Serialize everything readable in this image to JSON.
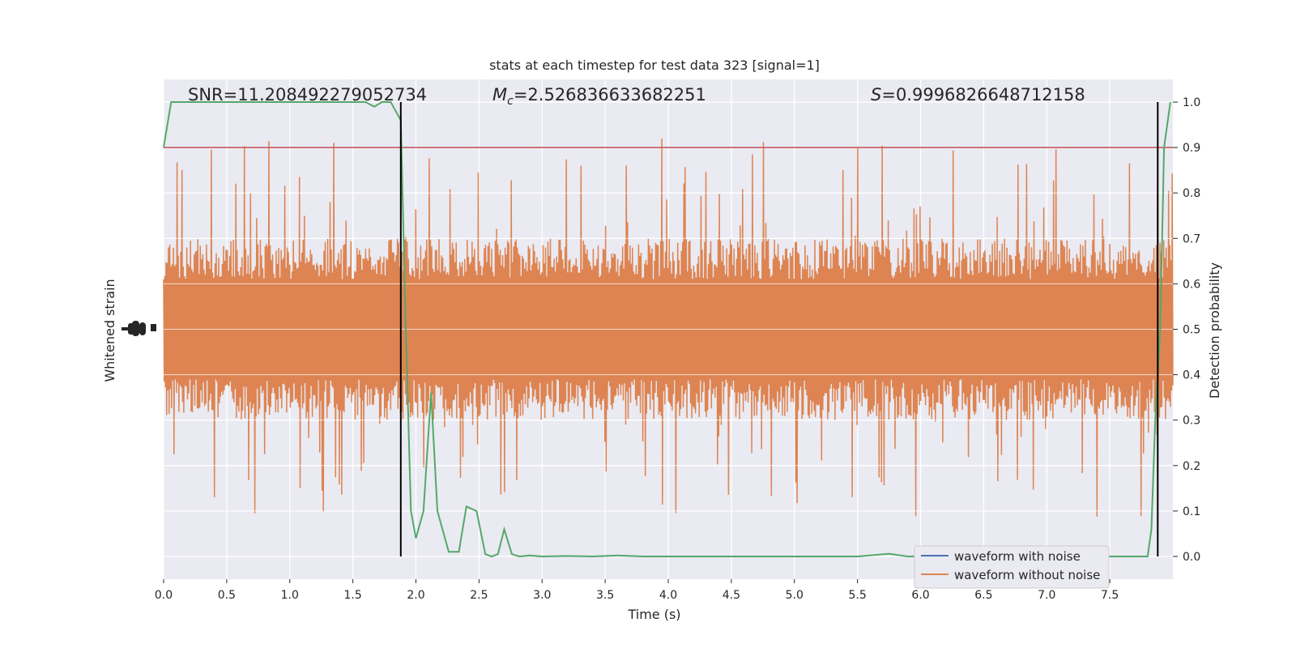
{
  "chart_data": {
    "type": "line",
    "title": "stats at each timestep for test data 323 [signal=1]",
    "xlabel": "Time (s)",
    "ylabel_left": "Whitened strain",
    "ylabel_right": "Detection probability",
    "xlim": [
      0.0,
      8.0
    ],
    "ylim_right": [
      -0.05,
      1.05
    ],
    "x_ticks": [
      "0.0",
      "0.5",
      "1.0",
      "1.5",
      "2.0",
      "2.5",
      "3.0",
      "3.5",
      "4.0",
      "4.5",
      "5.0",
      "5.5",
      "6.0",
      "6.5",
      "7.0",
      "7.5"
    ],
    "y_ticks_right": [
      "0.0",
      "0.1",
      "0.2",
      "0.3",
      "0.4",
      "0.5",
      "0.6",
      "0.7",
      "0.8",
      "0.9",
      "1.0"
    ],
    "grid": true,
    "legend_position": "lower-right",
    "annotations": {
      "snr": "SNR=11.208492279052734",
      "mc": "=2.526836633682251",
      "s": "=0.9996826648712158"
    },
    "threshold": 0.9,
    "vlines": [
      1.88,
      7.88
    ],
    "series": [
      {
        "name": "waveform with noise",
        "color": "#4c72b0",
        "values": []
      },
      {
        "name": "waveform without noise",
        "color": "#dd8452",
        "band_center": 0.5,
        "band_halfwidth": 0.2,
        "peak_range": [
          0.0,
          0.92
        ]
      },
      {
        "color": "#55a868",
        "x": [
          0.0,
          0.06,
          0.3,
          0.6,
          0.9,
          1.2,
          1.5,
          1.6,
          1.67,
          1.73,
          1.8,
          1.88,
          1.92,
          1.96,
          2.0,
          2.06,
          2.12,
          2.17,
          2.26,
          2.34,
          2.4,
          2.48,
          2.55,
          2.6,
          2.65,
          2.7,
          2.76,
          2.82,
          2.9,
          3.0,
          3.2,
          3.4,
          3.6,
          3.8,
          4.0,
          4.5,
          5.0,
          5.5,
          5.75,
          5.9,
          6.2,
          6.6,
          7.0,
          7.4,
          7.7,
          7.8,
          7.83,
          7.86,
          7.9,
          7.93,
          7.98
        ],
        "values": [
          0.9,
          1.0,
          1.0,
          1.0,
          1.0,
          1.0,
          1.0,
          1.0,
          0.99,
          1.0,
          1.0,
          0.96,
          0.5,
          0.1,
          0.04,
          0.1,
          0.36,
          0.1,
          0.01,
          0.01,
          0.11,
          0.1,
          0.005,
          0.0,
          0.005,
          0.06,
          0.005,
          0.0,
          0.002,
          0.0,
          0.001,
          0.0,
          0.002,
          0.0,
          0.0,
          0.0,
          0.0,
          0.0,
          0.006,
          0.0,
          0.001,
          0.0,
          0.002,
          0.0,
          0.0,
          0.0,
          0.06,
          0.3,
          0.5,
          0.9,
          1.0
        ]
      }
    ],
    "colors": {
      "background": "#eaeaf2",
      "grid": "#ffffff",
      "threshold": "#c44e52",
      "vline": "#000000"
    }
  }
}
